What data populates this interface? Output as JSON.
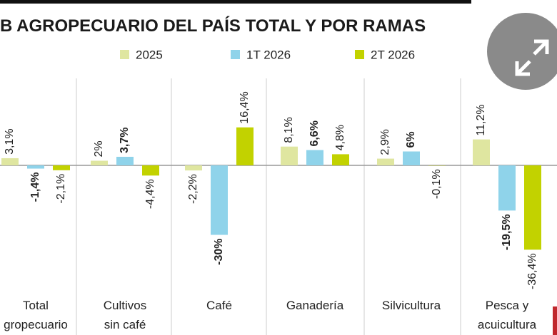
{
  "chart_data": {
    "type": "bar",
    "title": "B AGROPECUARIO DEL PAÍS TOTAL Y POR RAMAS",
    "categories": [
      "Total\ngropecuario",
      "Cultivos\nsin café",
      "Café",
      "Ganadería",
      "Silvicultura",
      "Pesca y\nacuicultura"
    ],
    "series": [
      {
        "name": "2025",
        "color": "#dfe6a0",
        "values": [
          3.1,
          2,
          -2.2,
          8.1,
          2.9,
          11.2
        ],
        "value_labels": [
          "3,1%",
          "2%",
          "-2,2%",
          "8,1%",
          "2,9%",
          "11,2%"
        ]
      },
      {
        "name": "1T 2026",
        "color": "#8fd3ea",
        "values": [
          -1.4,
          3.7,
          -30,
          6.6,
          6,
          -19.5
        ],
        "value_labels": [
          "-1,4%",
          "3,7%",
          "-30%",
          "6,6%",
          "6%",
          "-19,5%"
        ],
        "bold": true
      },
      {
        "name": "2T 2026",
        "color": "#c2d200",
        "values": [
          -2.1,
          -4.4,
          16.4,
          4.8,
          -0.1,
          -36.4
        ],
        "value_labels": [
          "-2,1%",
          "-4,4%",
          "16,4%",
          "4,8%",
          "-0,1%",
          "-36,4%"
        ]
      }
    ],
    "legend": "top"
  }
}
